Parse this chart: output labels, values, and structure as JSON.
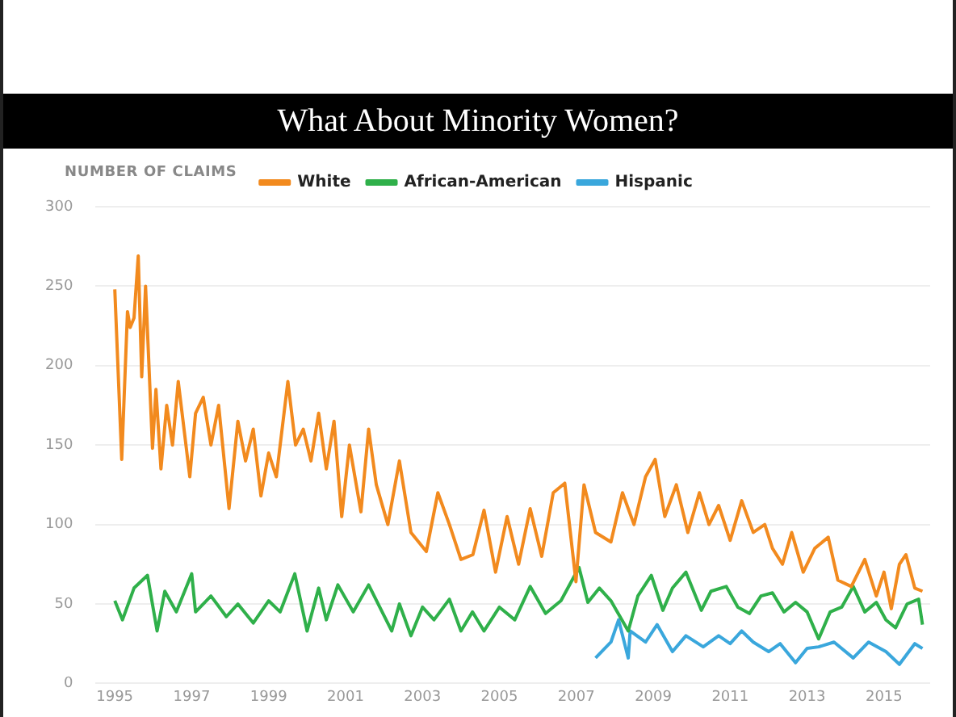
{
  "chart_data": {
    "type": "line",
    "title": "What About Minority Women?",
    "ylabel": "NUMBER OF CLAIMS",
    "xlim": [
      1994.5,
      2016.2
    ],
    "xticks": [
      1995,
      1997,
      1999,
      2001,
      2003,
      2005,
      2007,
      2009,
      2011,
      2013,
      2015
    ],
    "ylim": [
      0,
      300
    ],
    "yticks": [
      0,
      50,
      100,
      150,
      200,
      250,
      300
    ],
    "grid": "y",
    "legend": "top",
    "marker": "none",
    "line_style": "solid",
    "series": [
      {
        "name": "White",
        "color": "#f28a1e",
        "x": [
          1995.0,
          1995.18,
          1995.33,
          1995.4,
          1995.5,
          1995.61,
          1995.7,
          1995.8,
          1995.98,
          1996.07,
          1996.2,
          1996.35,
          1996.5,
          1996.65,
          1996.8,
          1996.95,
          1997.1,
          1997.3,
          1997.5,
          1997.7,
          1997.97,
          1998.2,
          1998.4,
          1998.6,
          1998.8,
          1999.0,
          1999.2,
          1999.5,
          1999.7,
          1999.9,
          2000.1,
          2000.3,
          2000.5,
          2000.7,
          2000.9,
          2001.1,
          2001.4,
          2001.6,
          2001.8,
          2002.1,
          2002.4,
          2002.7,
          2003.1,
          2003.4,
          2003.7,
          2004.0,
          2004.31,
          2004.6,
          2004.9,
          2005.2,
          2005.5,
          2005.8,
          2006.1,
          2006.4,
          2006.7,
          2006.99,
          2007.2,
          2007.5,
          2007.9,
          2008.2,
          2008.5,
          2008.8,
          2009.05,
          2009.3,
          2009.6,
          2009.9,
          2010.2,
          2010.45,
          2010.7,
          2011.0,
          2011.3,
          2011.6,
          2011.9,
          2012.1,
          2012.36,
          2012.6,
          2012.9,
          2013.2,
          2013.55,
          2013.8,
          2014.15,
          2014.5,
          2014.8,
          2015.0,
          2015.19,
          2015.4,
          2015.57,
          2015.8,
          2016.0
        ],
        "values": [
          248,
          141,
          234,
          224,
          230,
          269,
          193,
          250,
          148,
          185,
          135,
          175,
          150,
          190,
          160,
          130,
          170,
          180,
          150,
          175,
          110,
          165,
          140,
          160,
          118,
          145,
          130,
          190,
          150,
          160,
          140,
          170,
          135,
          165,
          105,
          150,
          108,
          160,
          125,
          100,
          140,
          95,
          83,
          120,
          100,
          78,
          81,
          109,
          70,
          105,
          75,
          110,
          80,
          120,
          126,
          64,
          125,
          95,
          89,
          120,
          100,
          130,
          141,
          105,
          125,
          95,
          120,
          100,
          112,
          90,
          115,
          95,
          100,
          85,
          75,
          95,
          70,
          85,
          92,
          65,
          61,
          78,
          55,
          70,
          47,
          75,
          81,
          60,
          58
        ]
      },
      {
        "name": "African-American",
        "color": "#2fb04a",
        "x": [
          1995.0,
          1995.2,
          1995.5,
          1995.85,
          1996.1,
          1996.3,
          1996.6,
          1997.0,
          1997.1,
          1997.5,
          1997.9,
          1998.2,
          1998.6,
          1999.0,
          1999.3,
          1999.68,
          2000.0,
          2000.3,
          2000.5,
          2000.8,
          2001.2,
          2001.6,
          2002.2,
          2002.4,
          2002.7,
          2003.0,
          2003.3,
          2003.7,
          2004.0,
          2004.3,
          2004.6,
          2005.0,
          2005.4,
          2005.8,
          2006.2,
          2006.6,
          2007.07,
          2007.3,
          2007.6,
          2007.9,
          2008.35,
          2008.6,
          2008.95,
          2009.25,
          2009.5,
          2009.85,
          2010.25,
          2010.5,
          2010.9,
          2011.2,
          2011.5,
          2011.8,
          2012.1,
          2012.4,
          2012.7,
          2013.0,
          2013.3,
          2013.6,
          2013.9,
          2014.2,
          2014.5,
          2014.8,
          2015.05,
          2015.3,
          2015.6,
          2015.9,
          2016.0
        ],
        "values": [
          52,
          40,
          60,
          68,
          33,
          58,
          45,
          69,
          45,
          55,
          42,
          50,
          38,
          52,
          45,
          69,
          33,
          60,
          40,
          62,
          45,
          62,
          33,
          50,
          30,
          48,
          40,
          53,
          33,
          45,
          33,
          48,
          40,
          61,
          44,
          52,
          73,
          51,
          60,
          52,
          33,
          55,
          68,
          46,
          60,
          70,
          46,
          58,
          61,
          48,
          44,
          55,
          57,
          45,
          51,
          45,
          28,
          45,
          48,
          61,
          45,
          51,
          40,
          35,
          50,
          53,
          37
        ]
      },
      {
        "name": "Hispanic",
        "color": "#3aa7dc",
        "x": [
          2007.5,
          2007.9,
          2008.1,
          2008.35,
          2008.4,
          2008.8,
          2009.1,
          2009.5,
          2009.85,
          2010.3,
          2010.7,
          2011.0,
          2011.3,
          2011.6,
          2012.0,
          2012.3,
          2012.7,
          2013.0,
          2013.3,
          2013.7,
          2014.2,
          2014.6,
          2015.05,
          2015.4,
          2015.8,
          2016.0
        ],
        "values": [
          16,
          26,
          40,
          16,
          33,
          26,
          37,
          20,
          30,
          23,
          30,
          25,
          33,
          26,
          20,
          25,
          13,
          22,
          23,
          26,
          16,
          26,
          20,
          12,
          25,
          22
        ]
      }
    ]
  }
}
